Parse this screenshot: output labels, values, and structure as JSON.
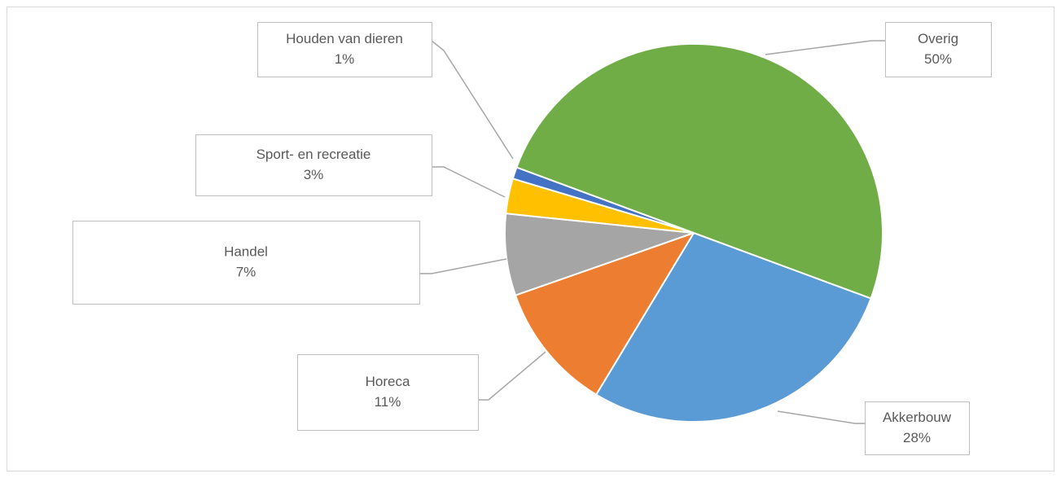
{
  "chart_data": {
    "type": "pie",
    "categories": [
      "Akkerbouw",
      "Horeca",
      "Handel",
      "Sport- en recreatie",
      "Houden van dieren",
      "Overig"
    ],
    "values": [
      28,
      11,
      7,
      3,
      1,
      50
    ],
    "value_labels": [
      "28%",
      "11%",
      "7%",
      "3%",
      "1%",
      "50%"
    ],
    "colors": [
      "#5b9bd5",
      "#ed7d31",
      "#a5a5a5",
      "#ffc000",
      "#4472c4",
      "#70ad47"
    ]
  }
}
